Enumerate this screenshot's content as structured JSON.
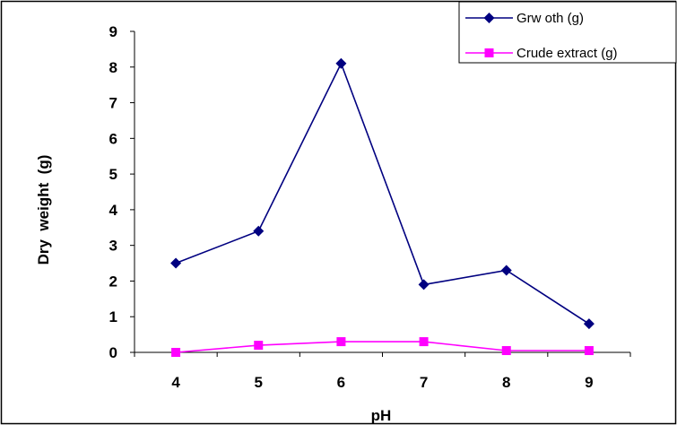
{
  "chart_data": {
    "type": "line",
    "title": "",
    "xlabel": "pH",
    "ylabel": "Dry  weight  (g)",
    "x": [
      4,
      5,
      6,
      7,
      8,
      9
    ],
    "x_tick_labels": [
      "4",
      "5",
      "6",
      "7",
      "8",
      "9"
    ],
    "y_tick_labels": [
      "0",
      "1",
      "2",
      "3",
      "4",
      "5",
      "6",
      "7",
      "8",
      "9"
    ],
    "ylim": [
      0,
      9
    ],
    "grid": false,
    "legend_position": "top-right",
    "series": [
      {
        "name": "Grw oth (g)",
        "values": [
          2.5,
          3.4,
          8.1,
          1.9,
          2.3,
          0.8
        ],
        "color": "#000080",
        "marker": "diamond"
      },
      {
        "name": "Crude extract (g)",
        "values": [
          0.0,
          0.2,
          0.3,
          0.3,
          0.05,
          0.05
        ],
        "color": "#ff00ff",
        "marker": "square"
      }
    ]
  }
}
